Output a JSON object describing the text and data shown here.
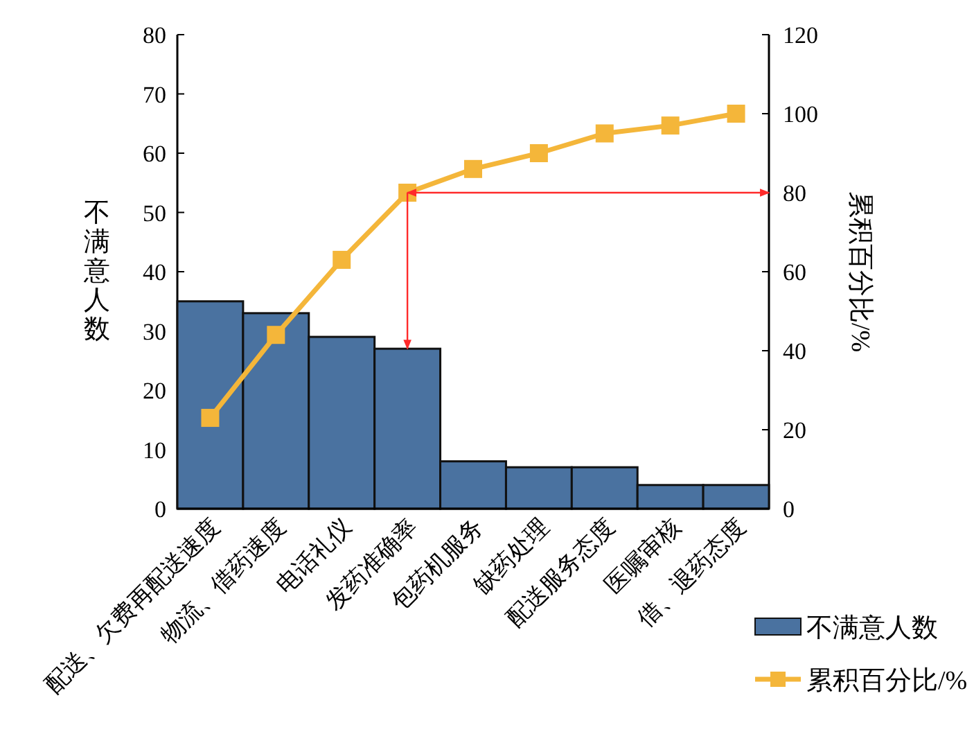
{
  "chart_data": {
    "type": "bar",
    "ylabel": "不满意人数",
    "y2label": "累积百分比/%",
    "categories": [
      "配送、欠费再配送速度",
      "物流、借药速度",
      "电话礼仪",
      "发药准确率",
      "包药机服务",
      "缺药处理",
      "配送服务态度",
      "医嘱审核",
      "借、退药态度"
    ],
    "series": [
      {
        "name": "不满意人数",
        "color": "#4a72a0",
        "values": [
          35,
          33,
          29,
          27,
          8,
          7,
          7,
          4,
          4
        ]
      },
      {
        "name": "累积百分比/%",
        "type": "line",
        "axis": "y2",
        "color": "#f4b63a",
        "marker": "square",
        "values": [
          23,
          44,
          63,
          80,
          86,
          90,
          95,
          97,
          100
        ]
      }
    ],
    "ylim": [
      0,
      80
    ],
    "yticks": [
      0,
      10,
      20,
      30,
      40,
      50,
      60,
      70,
      80
    ],
    "y2lim": [
      0,
      120
    ],
    "y2ticks": [
      0,
      20,
      40,
      60,
      80,
      100,
      120
    ],
    "ref_lines": [
      {
        "axis": "y2",
        "value": 80,
        "color": "#ff2a2a"
      },
      {
        "axis": "x",
        "value": "发药准确率",
        "color": "#ff2a2a"
      }
    ],
    "grid": false,
    "legend": "bottom right"
  }
}
